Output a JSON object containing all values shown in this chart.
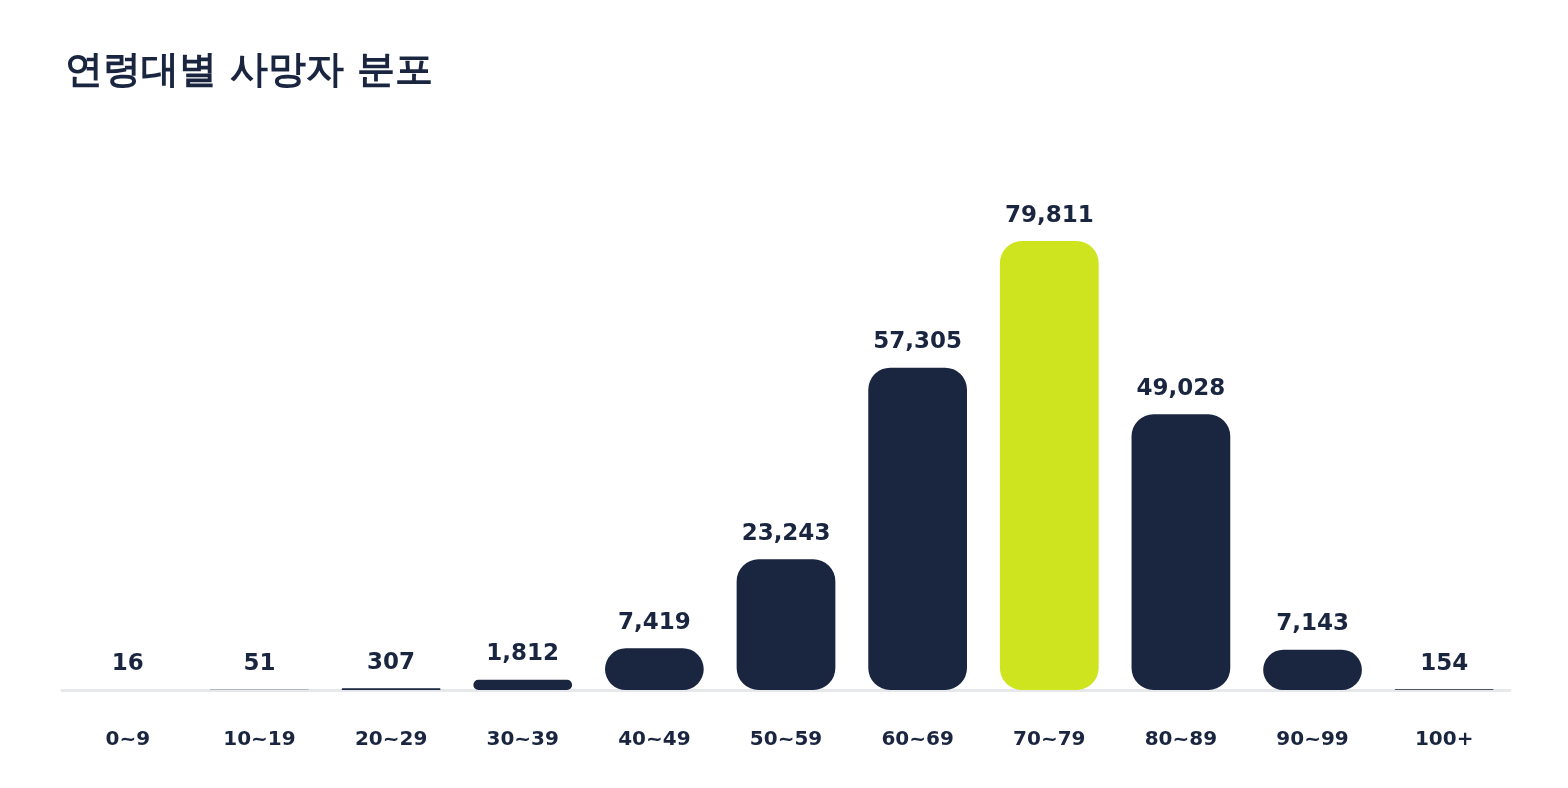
{
  "chart_data": {
    "type": "bar",
    "title": "연령대별 사망자 분포",
    "categories": [
      "0~9",
      "10~19",
      "20~29",
      "30~39",
      "40~49",
      "50~59",
      "60~69",
      "70~79",
      "80~89",
      "90~99",
      "100+"
    ],
    "values": [
      16,
      51,
      307,
      1812,
      7419,
      23243,
      57305,
      79811,
      49028,
      7143,
      154
    ],
    "value_labels": [
      "16",
      "51",
      "307",
      "1,812",
      "7,419",
      "23,243",
      "57,305",
      "79,811",
      "49,028",
      "7,143",
      "154"
    ],
    "colors": [
      "#1a2540",
      "#1a2540",
      "#1a2540",
      "#1a2540",
      "#1a2540",
      "#1a2540",
      "#1a2540",
      "#cde41e",
      "#1a2540",
      "#1a2540",
      "#1a2540"
    ]
  }
}
